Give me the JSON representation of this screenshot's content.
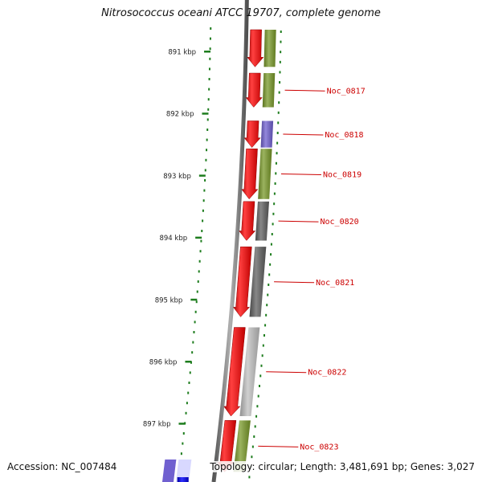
{
  "title": "Nitrosococcus oceani ATCC 19707, complete genome",
  "footer": {
    "accession": "Accession: NC_007484",
    "summary": "Topology: circular; Length: 3,481,691 bp; Genes: 3,027"
  },
  "scale": {
    "unit": "kbp",
    "ticks": [
      {
        "label": "891 kbp",
        "kbp": 891
      },
      {
        "label": "892 kbp",
        "kbp": 892
      },
      {
        "label": "893 kbp",
        "kbp": 893
      },
      {
        "label": "894 kbp",
        "kbp": 894
      },
      {
        "label": "895 kbp",
        "kbp": 895
      },
      {
        "label": "896 kbp",
        "kbp": 896
      },
      {
        "label": "897 kbp",
        "kbp": 897
      }
    ]
  },
  "colors": {
    "forward_strand": "#ee1111",
    "reverse_strand": "#1111ee",
    "backbone": "#808080",
    "tick": "#1e7d1e",
    "feature_label": "#cc0000",
    "cog_green": "#7a9a2a",
    "cog_purple": "#7060d0",
    "cog_dark_gray": "#606060",
    "cog_light_gray": "#c0c0c0"
  },
  "genes": [
    {
      "label": "",
      "start_kbp": 890.65,
      "end_kbp": 891.25,
      "cog_color": "#7a9a2a"
    },
    {
      "label": "Noc_0817",
      "start_kbp": 891.35,
      "end_kbp": 891.9,
      "cog_color": "#7a9a2a"
    },
    {
      "label": "Noc_0818",
      "start_kbp": 892.12,
      "end_kbp": 892.55,
      "cog_color": "#7060d0"
    },
    {
      "label": "Noc_0819",
      "start_kbp": 892.57,
      "end_kbp": 893.38,
      "cog_color": "#7a9a2a"
    },
    {
      "label": "Noc_0820",
      "start_kbp": 893.42,
      "end_kbp": 894.05,
      "cog_color": "#606060"
    },
    {
      "label": "Noc_0821",
      "start_kbp": 894.15,
      "end_kbp": 895.28,
      "cog_color": "#606060"
    },
    {
      "label": "Noc_0822",
      "start_kbp": 895.45,
      "end_kbp": 896.88,
      "cog_color": "#c0c0c0"
    },
    {
      "label": "Noc_0823",
      "start_kbp": 896.95,
      "end_kbp": 897.78,
      "cog_color": "#7a9a2a"
    }
  ]
}
